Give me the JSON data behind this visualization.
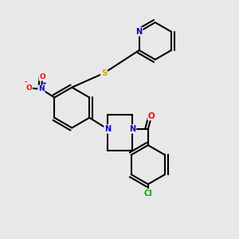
{
  "bg_color": "#e8e8e8",
  "bond_color": "#000000",
  "bond_width": 1.5,
  "atom_colors": {
    "N": "#0000cc",
    "O": "#ff0000",
    "S": "#ccaa00",
    "Cl": "#00aa00",
    "C": "#000000"
  },
  "dbl_sep": 0.12
}
